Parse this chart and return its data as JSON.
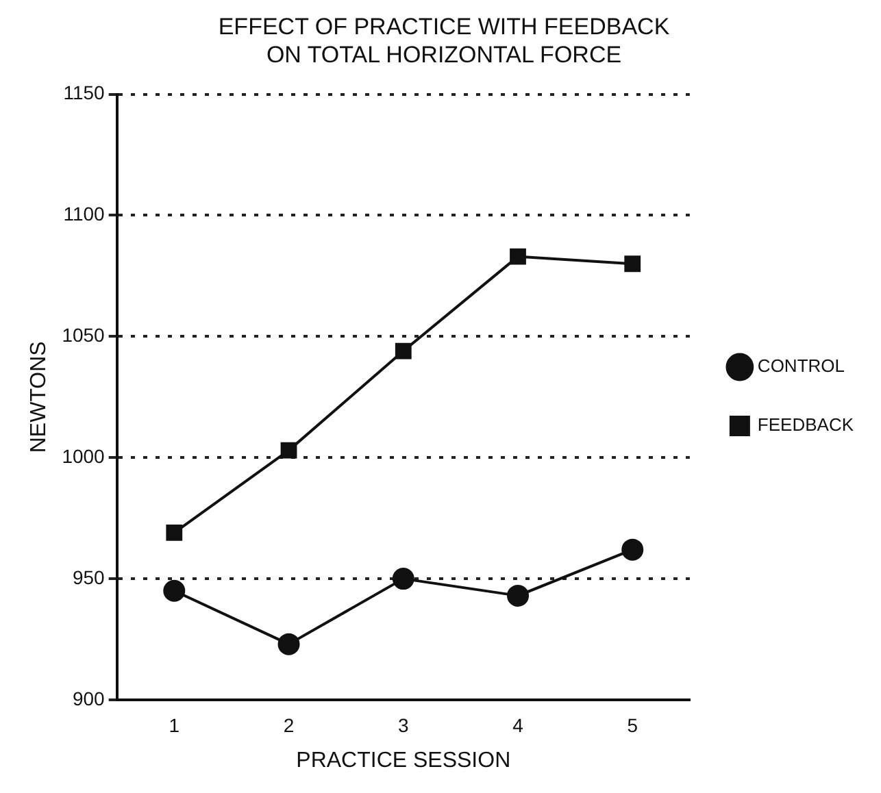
{
  "chart_data": {
    "type": "line",
    "title": "EFFECT OF PRACTICE WITH FEEDBACK\nON TOTAL HORIZONTAL FORCE",
    "xlabel": "PRACTICE SESSION",
    "ylabel": "NEWTONS",
    "categories": [
      "1",
      "2",
      "3",
      "4",
      "5"
    ],
    "series": [
      {
        "name": "CONTROL",
        "color": "#111111",
        "marker": "circle",
        "values": [
          945,
          923,
          950,
          943,
          962
        ]
      },
      {
        "name": "FEEDBACK",
        "color": "#111111",
        "marker": "square",
        "values": [
          969,
          1003,
          1044,
          1083,
          1080
        ]
      }
    ],
    "ylim": [
      900,
      1150
    ],
    "yticks": [
      900,
      950,
      1000,
      1050,
      1100,
      1150
    ],
    "grid": "y",
    "legend": "right",
    "line_style": "solid"
  }
}
